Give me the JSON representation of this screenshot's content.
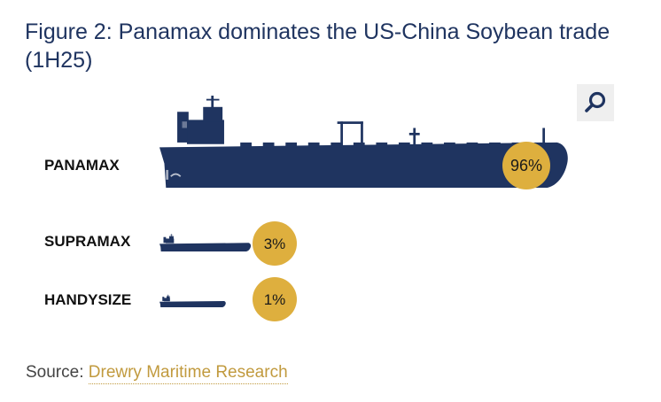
{
  "title": "Figure 2: Panamax dominates the US-China Soybean trade (1H25)",
  "source": {
    "label": "Source:",
    "link_text": "Drewry Maritime Research"
  },
  "colors": {
    "ship": "#1f3460",
    "bubble": "#deaf3e",
    "title": "#1f3460"
  },
  "icons": {
    "zoom": "magnifier-icon"
  },
  "chart_data": {
    "type": "bar",
    "categories": [
      "PANAMAX",
      "SUPRAMAX",
      "HANDYSIZE"
    ],
    "values": [
      96,
      3,
      1
    ],
    "value_labels": [
      "96%",
      "3%",
      "1%"
    ],
    "unit": "%"
  }
}
